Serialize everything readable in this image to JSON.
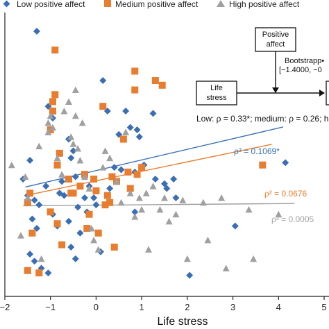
{
  "chart_data": {
    "type": "scatter",
    "xlabel": "Life stress",
    "ylabel": "",
    "xlim": [
      -2,
      5
    ],
    "ylim": [
      -3.05,
      3.0
    ],
    "xticks": [
      "−2",
      "−1",
      "0",
      "1",
      "2",
      "3",
      "4",
      "5"
    ],
    "xtick_values": [
      -2,
      -1,
      0,
      1,
      2,
      3,
      4,
      5
    ],
    "legend": {
      "placement": "top",
      "entries": [
        "Low positive affect",
        "Medium positive affect",
        "High positive affect"
      ]
    },
    "series": [
      {
        "name": "Low positive affect",
        "marker": "diamond",
        "color": "#3a6fb5",
        "points": [
          [
            -1.3,
            2.6
          ],
          [
            -1.05,
            1.0
          ],
          [
            -0.95,
            0.75
          ],
          [
            -1.45,
            -0.15
          ],
          [
            -1.6,
            -0.55
          ],
          [
            -1.5,
            -0.9
          ],
          [
            -1.35,
            -1.0
          ],
          [
            -1.25,
            -1.1
          ],
          [
            -1.4,
            -1.4
          ],
          [
            -1.3,
            -1.6
          ],
          [
            -1.45,
            -2.15
          ],
          [
            -1.35,
            -2.3
          ],
          [
            -1.2,
            -2.45
          ],
          [
            -1.05,
            -2.55
          ],
          [
            -1.1,
            -0.7
          ],
          [
            -0.95,
            -1.3
          ],
          [
            -0.85,
            -1.55
          ],
          [
            -0.8,
            -0.85
          ],
          [
            -0.75,
            -0.6
          ],
          [
            -0.6,
            0.3
          ],
          [
            -0.55,
            -0.1
          ],
          [
            -0.5,
            0.05
          ],
          [
            -0.45,
            -0.5
          ],
          [
            -0.6,
            -1.45
          ],
          [
            -0.55,
            -2.0
          ],
          [
            -0.45,
            -2.25
          ],
          [
            -0.4,
            -1.15
          ],
          [
            -0.35,
            -1.7
          ],
          [
            -0.25,
            -0.95
          ],
          [
            -0.2,
            -1.25
          ],
          [
            -0.15,
            -0.7
          ],
          [
            -0.05,
            -0.95
          ],
          [
            0.0,
            -1.1
          ],
          [
            0.1,
            -2.1
          ],
          [
            0.15,
            1.55
          ],
          [
            0.25,
            0.9
          ],
          [
            0.35,
            -0.5
          ],
          [
            0.3,
            -0.75
          ],
          [
            0.4,
            -0.3
          ],
          [
            0.5,
            0.4
          ],
          [
            0.55,
            -0.35
          ],
          [
            0.65,
            0.9
          ],
          [
            0.85,
            -0.4
          ],
          [
            0.95,
            0.35
          ],
          [
            0.75,
            0.55
          ],
          [
            1.05,
            -0.25
          ],
          [
            0.85,
            -1.25
          ],
          [
            1.25,
            0.85
          ],
          [
            1.3,
            -0.55
          ],
          [
            1.5,
            -0.65
          ],
          [
            1.7,
            -0.55
          ],
          [
            1.75,
            -0.95
          ],
          [
            0.9,
            0.5
          ],
          [
            -0.7,
            -0.9
          ],
          [
            1.55,
            -0.75
          ],
          [
            3.05,
            -1.55
          ],
          [
            2.05,
            -2.6
          ],
          [
            4.15,
            -0.2
          ]
        ]
      },
      {
        "name": "Medium positive affect",
        "marker": "square",
        "color": "#e87d2f",
        "points": [
          [
            -0.9,
            2.2
          ],
          [
            -0.95,
            1.1
          ],
          [
            -0.9,
            1.25
          ],
          [
            -0.95,
            0.9
          ],
          [
            -1.45,
            -0.85
          ],
          [
            -1.5,
            -1.05
          ],
          [
            -1.4,
            -1.7
          ],
          [
            -1.5,
            -2.5
          ],
          [
            -1.25,
            -2.55
          ],
          [
            -1.0,
            -1.25
          ],
          [
            -0.85,
            -1.5
          ],
          [
            -0.75,
            -1.95
          ],
          [
            -0.85,
            -0.25
          ],
          [
            -0.6,
            -0.55
          ],
          [
            -0.55,
            -0.85
          ],
          [
            -0.5,
            -0.85
          ],
          [
            -0.35,
            -0.7
          ],
          [
            -0.25,
            -0.45
          ],
          [
            -0.2,
            -1.6
          ],
          [
            -0.15,
            -1.3
          ],
          [
            -0.05,
            -0.55
          ],
          [
            0.0,
            -0.8
          ],
          [
            0.05,
            -1.7
          ],
          [
            0.2,
            -1.1
          ],
          [
            0.3,
            -1.05
          ],
          [
            0.35,
            -0.5
          ],
          [
            0.45,
            -0.6
          ],
          [
            0.25,
            -0.9
          ],
          [
            0.4,
            -2.0
          ],
          [
            0.6,
            0.3
          ],
          [
            0.7,
            -0.4
          ],
          [
            0.75,
            -0.75
          ],
          [
            0.85,
            1.75
          ],
          [
            0.85,
            1.35
          ],
          [
            0.9,
            -0.45
          ],
          [
            1.0,
            -0.3
          ],
          [
            1.3,
            1.55
          ],
          [
            1.45,
            1.45
          ],
          [
            0.15,
            1.0
          ],
          [
            -0.8,
            0.0
          ],
          [
            -1.0,
            0.5
          ],
          [
            3.65,
            -0.25
          ]
        ]
      },
      {
        "name": "High positive affect",
        "marker": "triangle",
        "color": "#a0a0a0",
        "points": [
          [
            -1.85,
            -0.25
          ],
          [
            -1.55,
            -0.5
          ],
          [
            -1.5,
            -0.95
          ],
          [
            -1.65,
            -1.75
          ],
          [
            -1.2,
            -2.25
          ],
          [
            -1.05,
            0.45
          ],
          [
            -1.05,
            0.65
          ],
          [
            -1.0,
            0.8
          ],
          [
            -0.95,
            0.55
          ],
          [
            -0.85,
            -0.1
          ],
          [
            -0.75,
            -0.45
          ],
          [
            -0.6,
            1.1
          ],
          [
            -0.55,
            0.35
          ],
          [
            -0.5,
            0.2
          ],
          [
            -0.45,
            1.35
          ],
          [
            -0.45,
            0.8
          ],
          [
            -0.4,
            0.1
          ],
          [
            -0.35,
            -0.15
          ],
          [
            -0.25,
            -0.5
          ],
          [
            -0.15,
            -0.75
          ],
          [
            -0.1,
            -1.6
          ],
          [
            -0.05,
            -1.85
          ],
          [
            0.05,
            -2.05
          ],
          [
            0.15,
            -0.3
          ],
          [
            0.2,
            0.05
          ],
          [
            0.3,
            -0.1
          ],
          [
            0.45,
            -0.6
          ],
          [
            0.55,
            -1.05
          ],
          [
            0.65,
            0.45
          ],
          [
            0.75,
            -0.85
          ],
          [
            0.85,
            -1.35
          ],
          [
            0.95,
            -0.95
          ],
          [
            1.0,
            -1.2
          ],
          [
            1.1,
            -0.85
          ],
          [
            1.15,
            -2.05
          ],
          [
            1.25,
            -0.7
          ],
          [
            1.4,
            -1.2
          ],
          [
            1.5,
            -0.95
          ],
          [
            1.6,
            -1.45
          ],
          [
            1.75,
            -1.3
          ],
          [
            1.9,
            -1.0
          ],
          [
            2.0,
            -2.25
          ],
          [
            2.35,
            -1.05
          ],
          [
            2.45,
            -1.85
          ],
          [
            2.75,
            -0.95
          ],
          [
            2.85,
            -2.45
          ],
          [
            3.35,
            -1.2
          ],
          [
            3.45,
            -2.25
          ],
          [
            4.0,
            -1.3
          ],
          [
            -1.25,
            0.15
          ],
          [
            -0.7,
            0.9
          ],
          [
            -0.3,
            0.65
          ]
        ]
      }
    ],
    "fit_lines": [
      {
        "series": "Low positive affect",
        "color": "#3a6fb5",
        "x": [
          -1.55,
          4.1
        ],
        "y": [
          -0.72,
          0.56
        ],
        "label": "ρ² = 0.1069*"
      },
      {
        "series": "Medium positive affect",
        "color": "#e87d2f",
        "x": [
          -1.55,
          3.85
        ],
        "y": [
          -0.9,
          0.19
        ],
        "label": "ρ² = 0.0676"
      },
      {
        "series": "High positive affect",
        "color": "#a0a0a0",
        "x": [
          -1.6,
          4.35
        ],
        "y": [
          -1.12,
          -1.07
        ],
        "label": "ρ² = 0.0005"
      }
    ]
  },
  "legend": {
    "low": "Low positive affect",
    "medium": "Medium positive affect",
    "high": "High positive affect"
  },
  "mediation": {
    "positive_affect_line1": "Positive",
    "positive_affect_line2": "affect",
    "life_stress_line1": "Life",
    "life_stress_line2": "stress",
    "bootstrap_line1": "Bootstrapp•",
    "bootstrap_line2": "[−1.4000, −0",
    "stats": "Low: ρ = 0.33*; medium: ρ = 0.26; h"
  },
  "colors": {
    "low": "#3a6fb5",
    "medium": "#e87d2f",
    "high": "#a0a0a0"
  }
}
